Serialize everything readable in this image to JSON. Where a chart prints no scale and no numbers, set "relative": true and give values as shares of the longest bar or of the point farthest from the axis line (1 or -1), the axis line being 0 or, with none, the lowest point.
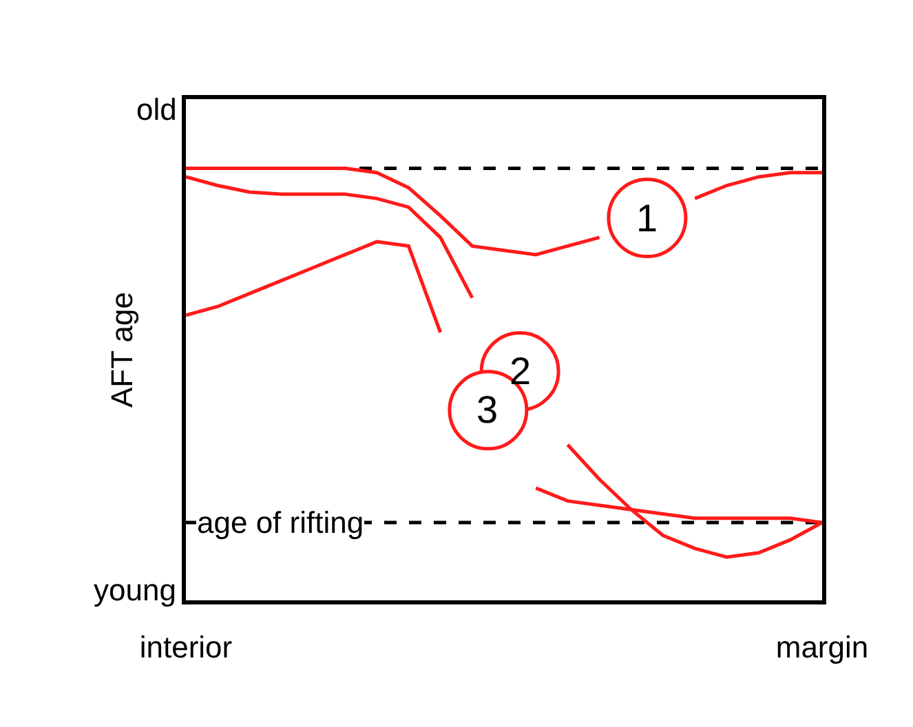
{
  "chart_data": {
    "type": "line",
    "relative": true,
    "ylabel": "AFT age",
    "categories": [
      "interior",
      null,
      null,
      null,
      null,
      null,
      null,
      null,
      null,
      null,
      null,
      null,
      null,
      null,
      null,
      null,
      null,
      null,
      null,
      null,
      "margin"
    ],
    "series": [
      {
        "name": "1",
        "color": "#ff1a1a",
        "values": [
          1.0,
          1.0,
          1.0,
          1.0,
          1.0,
          1.0,
          0.99,
          0.955,
          0.89,
          0.82,
          0.81,
          0.8,
          0.82,
          0.84,
          null,
          null,
          0.93,
          0.96,
          0.98,
          0.99,
          0.99
        ]
      },
      {
        "name": "2",
        "color": "#ff1a1a",
        "values": [
          0.98,
          0.96,
          0.945,
          0.94,
          0.94,
          0.94,
          0.93,
          0.91,
          0.84,
          0.7,
          null,
          null,
          0.36,
          0.28,
          0.21,
          0.15,
          0.12,
          0.1,
          0.11,
          0.14,
          0.18
        ]
      },
      {
        "name": "3",
        "color": "#ff1a1a",
        "values": [
          0.66,
          0.68,
          0.71,
          0.74,
          0.77,
          0.8,
          0.83,
          0.82,
          0.62,
          null,
          null,
          0.26,
          0.23,
          0.22,
          0.21,
          0.2,
          0.19,
          0.19,
          0.19,
          0.19,
          0.18
        ]
      }
    ],
    "ref_lines": [
      {
        "axis": "y",
        "value": 1.0,
        "label": null,
        "color": "#000000",
        "line_style": "dashed"
      },
      {
        "axis": "y",
        "value": 0.18,
        "label": "age of rifting",
        "color": "#000000",
        "line_style": "dashed"
      }
    ],
    "annotations": [
      "old",
      "young"
    ],
    "grid": false,
    "legend": false,
    "marker": "none",
    "line_style": "solid"
  }
}
